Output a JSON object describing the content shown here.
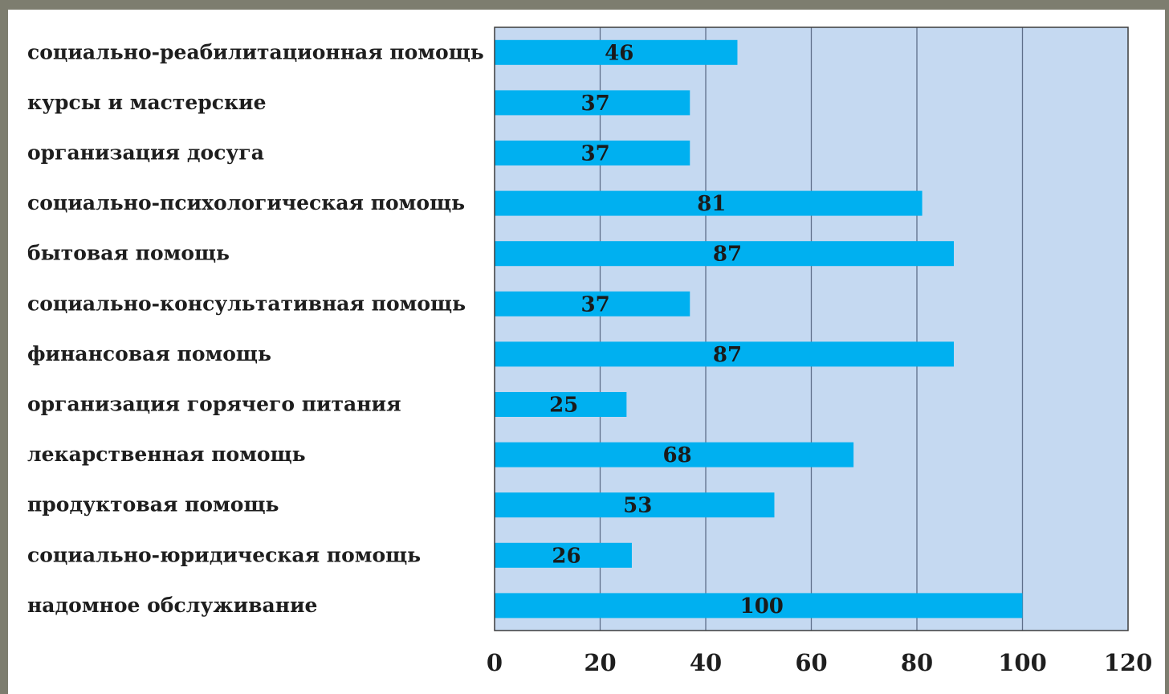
{
  "chart_data": {
    "type": "bar",
    "orientation": "horizontal",
    "categories": [
      "социально-реабилитационная помощь",
      "курсы и мастерские",
      "организация досуга",
      "социально-психологическая помощь",
      "бытовая помощь",
      "социально-консультативная помощь",
      "финансовая помощь",
      "организация горячего питания",
      "лекарственная помощь",
      "продуктовая помощь",
      "социально-юридическая помощь",
      "надомное обслуживание"
    ],
    "values": [
      46,
      37,
      37,
      81,
      87,
      37,
      87,
      25,
      68,
      53,
      26,
      100
    ],
    "data_labels": [
      "46",
      "37",
      "37",
      "81",
      "87",
      "37",
      "87",
      "25",
      "68",
      "53",
      "26",
      "100"
    ],
    "xticks": [
      "0",
      "20",
      "40",
      "60",
      "80",
      "100",
      "120"
    ],
    "xlim": [
      0,
      120
    ],
    "title": "",
    "xlabel": "",
    "ylabel": "",
    "grid": "vertical",
    "legend": "none",
    "colors": {
      "bar": "#00b0f0",
      "plot_background": "#c5d9f1",
      "gridline": "#5f6f8a",
      "frame_background": "#7d7d6f"
    }
  }
}
